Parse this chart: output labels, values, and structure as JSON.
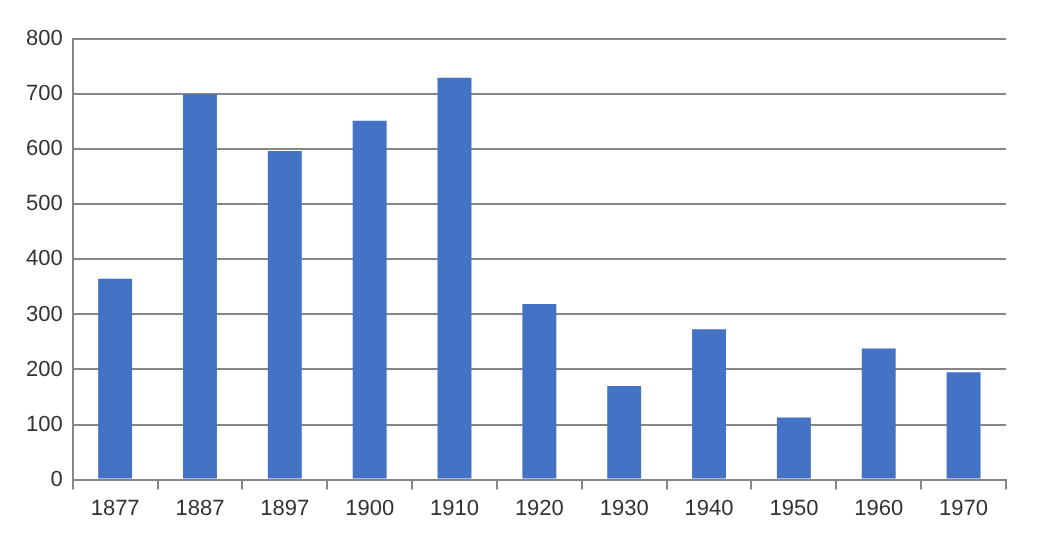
{
  "chart_data": {
    "type": "bar",
    "categories": [
      "1877",
      "1887",
      "1897",
      "1900",
      "1910",
      "1920",
      "1930",
      "1940",
      "1950",
      "1960",
      "1970"
    ],
    "values": [
      365,
      700,
      597,
      652,
      730,
      319,
      170,
      273,
      113,
      238,
      195
    ],
    "color": "#4472c4",
    "ylim": [
      0,
      800
    ],
    "yticks": [
      0,
      100,
      200,
      300,
      400,
      500,
      600,
      700,
      800
    ],
    "grid": "y",
    "legend": false
  }
}
